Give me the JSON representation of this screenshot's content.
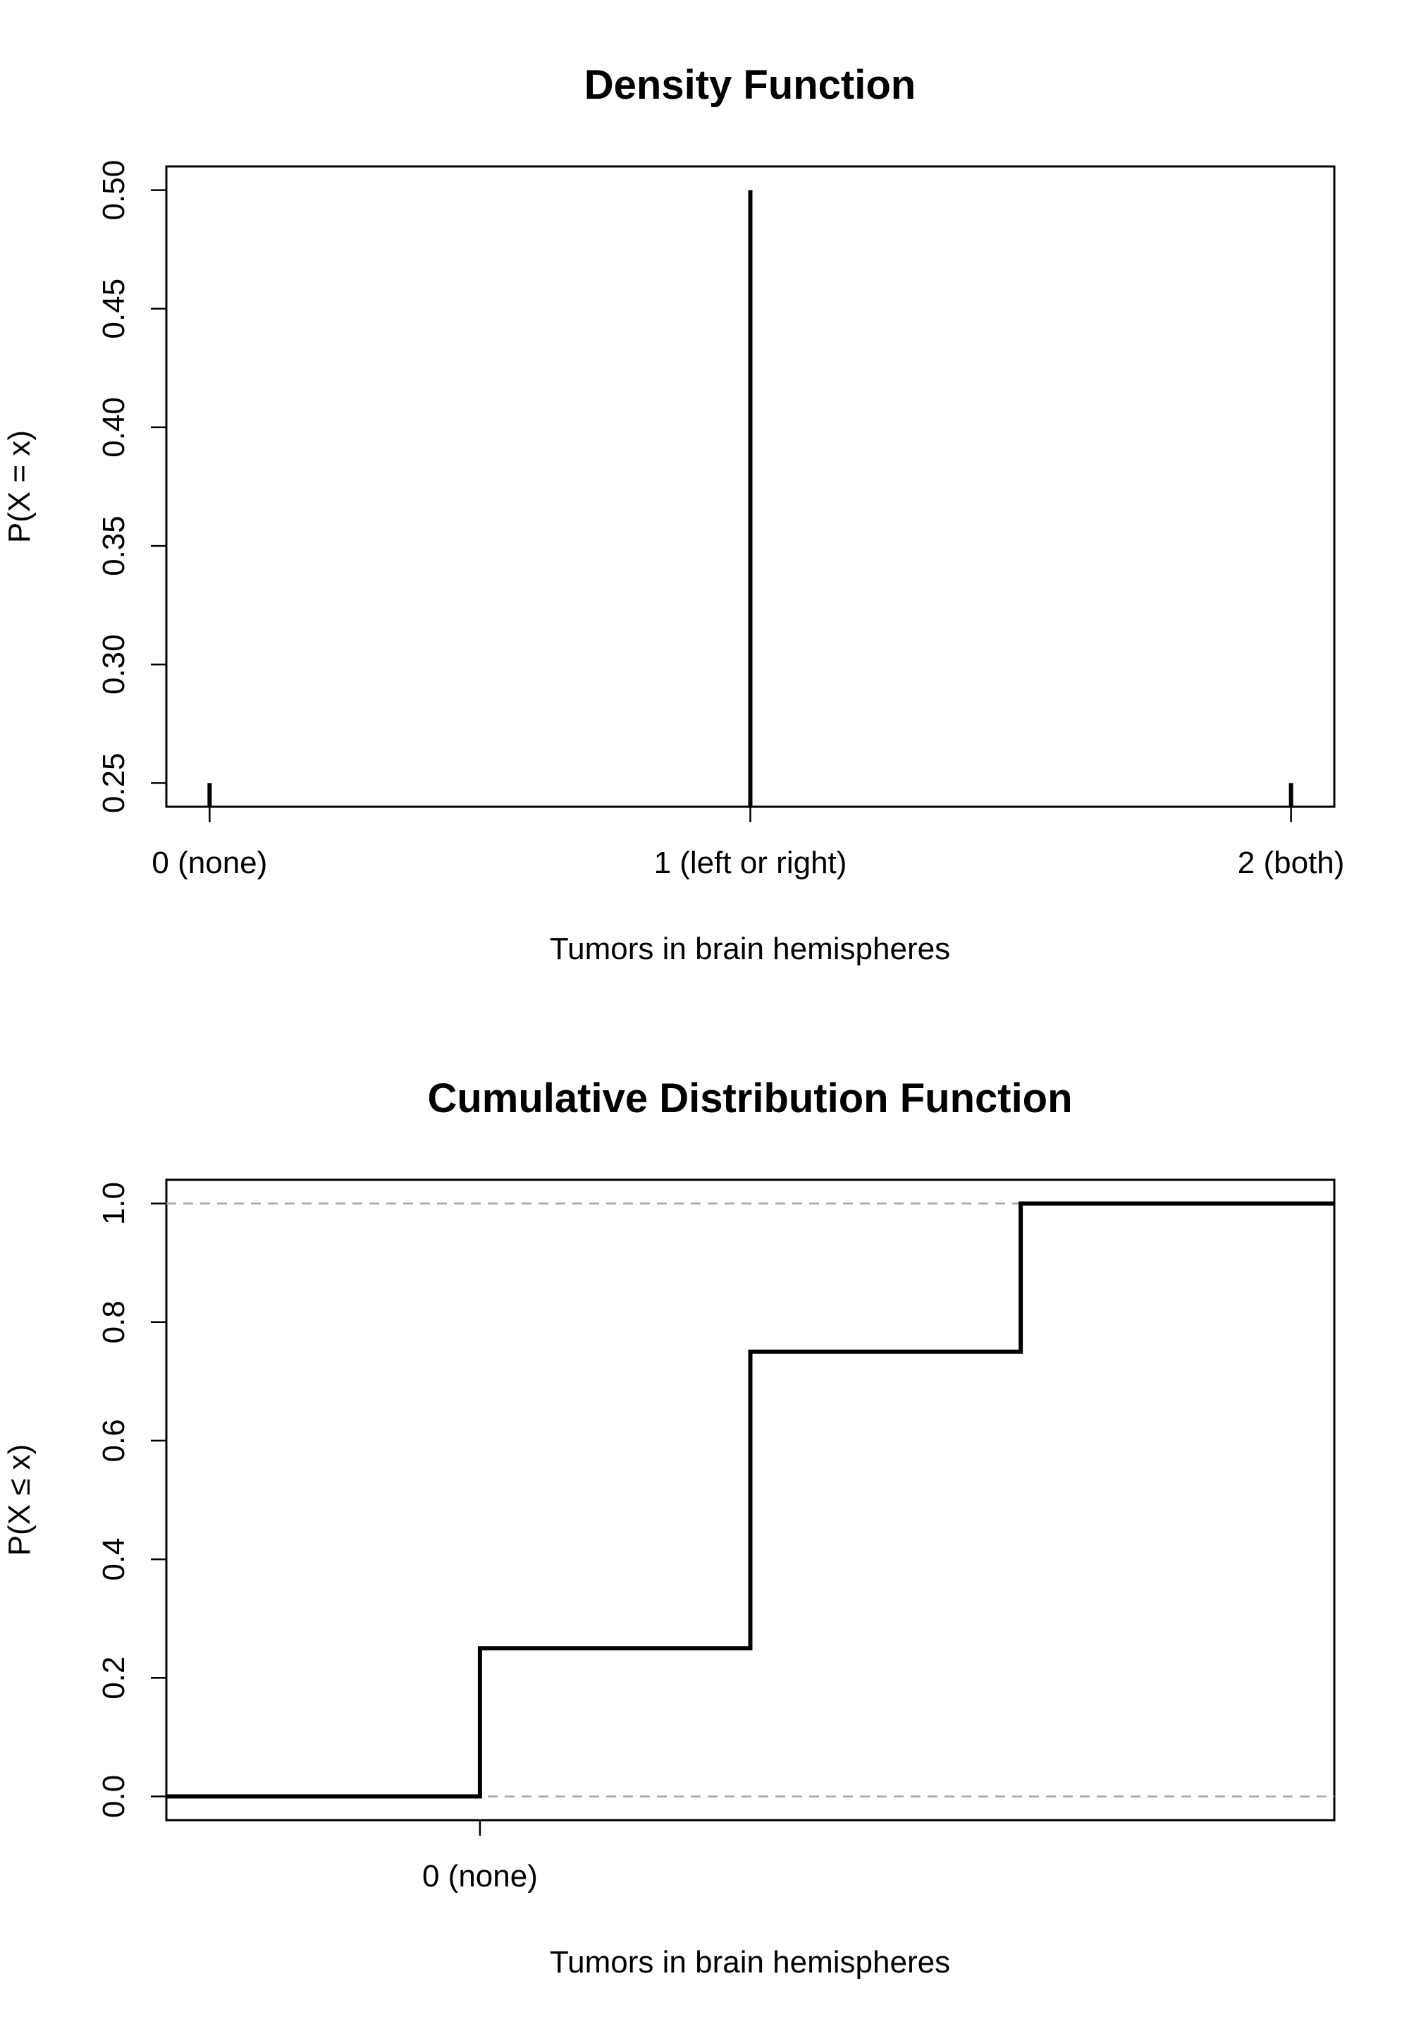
{
  "chart_data": [
    {
      "type": "bar",
      "title": "Density Function",
      "xlabel": "Tumors in brain hemispheres",
      "ylabel": "P(X = x)",
      "categories": [
        "0 (none)",
        "1 (left or right)",
        "2 (both)"
      ],
      "x": [
        0,
        1,
        2
      ],
      "values": [
        0.25,
        0.5,
        0.25
      ],
      "ylim": [
        0.24,
        0.51
      ],
      "xlim": [
        -0.08,
        2.08
      ],
      "y_ticks": [
        0.25,
        0.3,
        0.35,
        0.4,
        0.45,
        0.5
      ],
      "y_tick_labels": [
        "0.25",
        "0.30",
        "0.35",
        "0.40",
        "0.45",
        "0.50"
      ],
      "grid": false,
      "legend": "none"
    },
    {
      "type": "line",
      "title": "Cumulative Distribution Function",
      "xlabel": "Tumors in brain hemispheres",
      "ylabel": "P(X ≤ x)",
      "x": [
        -1,
        0,
        1,
        2,
        3
      ],
      "values": [
        0.0,
        0.25,
        0.75,
        1.0,
        1.0
      ],
      "xlim": [
        -1.16,
        3.16
      ],
      "ylim": [
        -0.04,
        1.04
      ],
      "x_ticks": [
        0
      ],
      "x_tick_labels": [
        "0 (none)"
      ],
      "y_ticks": [
        0.0,
        0.2,
        0.4,
        0.6,
        0.8,
        1.0
      ],
      "y_tick_labels": [
        "0.0",
        "0.2",
        "0.4",
        "0.6",
        "0.8",
        "1.0"
      ],
      "reference_lines": [
        0,
        1
      ],
      "grid": false,
      "legend": "none"
    }
  ],
  "colors": {
    "line": "#000000",
    "reference": "#a8a8a8",
    "background": "#ffffff"
  }
}
